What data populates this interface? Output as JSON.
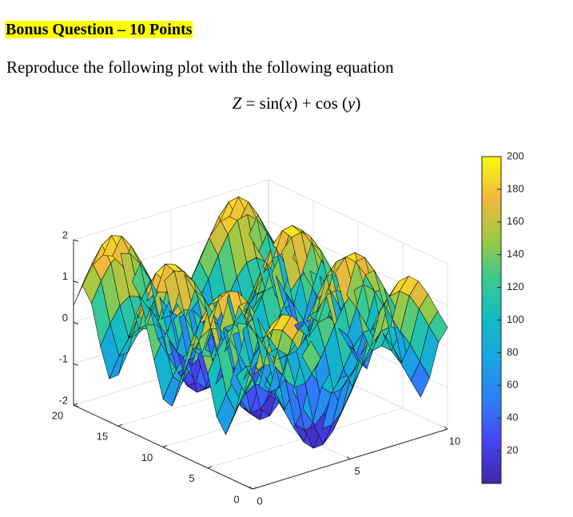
{
  "heading": "Bonus Question – 10 Points",
  "prompt": "Reproduce the following plot with the following equation",
  "equation": {
    "lhs": "Z",
    "eq": " = ",
    "sin": "sin(",
    "x": "x",
    "mid": ") + cos (",
    "y": "y",
    "close": ")"
  },
  "chart_data": {
    "type": "surface",
    "function": "sin(x) + cos(y)",
    "x_range": [
      0,
      10
    ],
    "y_range": [
      0,
      20
    ],
    "z_range": [
      -2,
      2
    ],
    "x_ticks": [
      "0",
      "5",
      "10"
    ],
    "y_ticks": [
      "0",
      "5",
      "10",
      "15",
      "20"
    ],
    "z_ticks": [
      "-2",
      "-1",
      "0",
      "1",
      "2"
    ],
    "colorbar": {
      "range": [
        0,
        200
      ],
      "ticks": [
        "20",
        "40",
        "60",
        "80",
        "100",
        "120",
        "140",
        "160",
        "180",
        "200"
      ],
      "colormap": "parula"
    },
    "grid": true,
    "colors": {
      "low": "#3e26a8",
      "mid": "#1fb4d6",
      "high": "#f9fb0e",
      "edge": "#000000"
    }
  }
}
